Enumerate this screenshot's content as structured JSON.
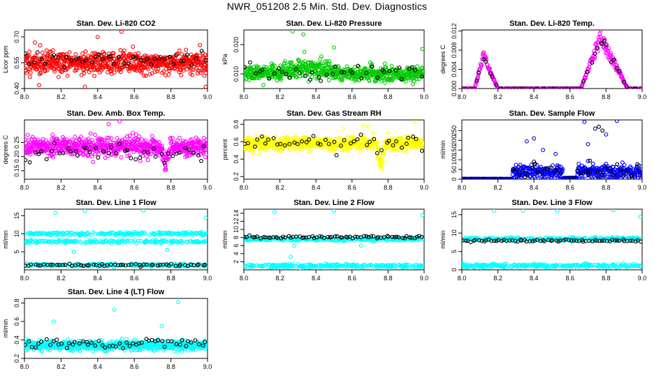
{
  "figure_title": "NWR_051208  2.5 Min. Std. Dev. Diagnostics",
  "colors": {
    "red": "#ff0000",
    "green": "#00cc00",
    "magenta": "#ff00ff",
    "yellow": "#ffff00",
    "blue": "#0000ff",
    "cyan": "#00ffff",
    "black": "#000000"
  },
  "chart_data": [
    {
      "id": "co2",
      "type": "scatter",
      "title": "Stan. Dev. Li-820 CO2",
      "ylabel": "Licor ppm",
      "xlim": [
        8.0,
        9.0
      ],
      "ylim": [
        0.4,
        0.74
      ],
      "xticks": [
        8.0,
        8.2,
        8.4,
        8.6,
        8.8,
        9.0
      ],
      "xtick_labels": [
        "8.0",
        "8.2",
        "8.4",
        "8.6",
        "8.8",
        "9.0"
      ],
      "yticks": [
        0.4,
        0.55,
        0.7
      ],
      "ytick_labels": [
        "0.40",
        "0.55",
        "0.70"
      ],
      "series": [
        {
          "name": "all",
          "color": "#ff0000",
          "pattern": "band",
          "n": 700,
          "center": 0.55,
          "spread": 0.06,
          "seed": 11,
          "outliers": [
            [
              8.08,
              0.42
            ],
            [
              8.33,
              0.41
            ],
            [
              8.53,
              0.73
            ],
            [
              8.99,
              0.41
            ],
            [
              8.4,
              0.7
            ]
          ]
        },
        {
          "name": "highlight",
          "color": "#000000",
          "pattern": "band",
          "n": 45,
          "center": 0.57,
          "spread": 0.045,
          "seed": 12
        }
      ]
    },
    {
      "id": "pressure",
      "type": "scatter",
      "title": "Stan. Dev. Li-820 Pressure",
      "ylabel": "kPa",
      "xlim": [
        8.0,
        9.0
      ],
      "ylim": [
        0.005,
        0.025
      ],
      "xticks": [
        8.0,
        8.2,
        8.4,
        8.6,
        8.8,
        9.0
      ],
      "xtick_labels": [
        "8.0",
        "8.2",
        "8.4",
        "8.6",
        "8.8",
        "9.0"
      ],
      "yticks": [
        0.01,
        0.02
      ],
      "ytick_labels": [
        "0.010",
        "0.020"
      ],
      "series": [
        {
          "name": "all",
          "color": "#00cc00",
          "pattern": "hump",
          "n": 700,
          "center": 0.01,
          "spread": 0.0025,
          "hump_at": 8.35,
          "hump_width": 0.15,
          "hump_height": 0.004,
          "seed": 21,
          "outliers": [
            [
              8.27,
              0.0245
            ],
            [
              8.33,
              0.0235
            ],
            [
              8.99,
              0.0185
            ],
            [
              8.5,
              0.019
            ]
          ]
        },
        {
          "name": "highlight",
          "color": "#000000",
          "pattern": "band",
          "n": 40,
          "center": 0.0105,
          "spread": 0.0028,
          "seed": 22
        }
      ]
    },
    {
      "id": "temp",
      "type": "scatter",
      "title": "Stan. Dev. Li-820 Temp.",
      "ylabel": "degrees C",
      "xlim": [
        8.0,
        9.0
      ],
      "ylim": [
        0.0,
        0.0122
      ],
      "xticks": [
        8.0,
        8.2,
        8.4,
        8.6,
        8.8,
        9.0
      ],
      "xtick_labels": [
        "8.0",
        "8.2",
        "8.4",
        "8.6",
        "8.8",
        "9.0"
      ],
      "yticks": [
        0.0,
        0.004,
        0.008,
        0.012
      ],
      "ytick_labels": [
        "0.000",
        "0.004",
        "0.008",
        "0.012"
      ],
      "series": [
        {
          "name": "all",
          "color": "#ff00ff",
          "pattern": "peaks",
          "n": 420,
          "seed": 31,
          "peaks": [
            {
              "start": 8.07,
              "top": 8.12,
              "end": 8.2,
              "height": 0.0075
            },
            {
              "start": 8.66,
              "top": 8.77,
              "end": 8.92,
              "height": 0.0118
            }
          ]
        },
        {
          "name": "highlight",
          "color": "#000000",
          "pattern": "peaks",
          "n": 55,
          "seed": 32,
          "peaks": [
            {
              "start": 8.07,
              "top": 8.12,
              "end": 8.2,
              "height": 0.007
            },
            {
              "start": 8.66,
              "top": 8.77,
              "end": 8.92,
              "height": 0.0115
            }
          ]
        }
      ]
    },
    {
      "id": "ambbox",
      "type": "scatter",
      "title": "Stan. Dev. Amb. Box Temp.",
      "ylabel": "degrees C",
      "xlim": [
        8.0,
        9.0
      ],
      "ylim": [
        0.12,
        0.33
      ],
      "xticks": [
        8.0,
        8.2,
        8.4,
        8.6,
        8.8,
        9.0
      ],
      "xtick_labels": [
        "8.0",
        "8.2",
        "8.4",
        "8.6",
        "8.8",
        "9.0"
      ],
      "yticks": [
        0.15,
        0.2,
        0.25
      ],
      "ytick_labels": [
        "0.15",
        "0.20",
        "0.25"
      ],
      "series": [
        {
          "name": "all",
          "color": "#ff00ff",
          "pattern": "dip",
          "n": 700,
          "center": 0.235,
          "spread": 0.03,
          "dip_at": 8.77,
          "dip_depth": 0.08,
          "seed": 41,
          "outliers": [
            [
              8.52,
              0.325
            ],
            [
              8.46,
              0.315
            ]
          ]
        },
        {
          "name": "highlight",
          "color": "#000000",
          "pattern": "dip",
          "n": 45,
          "center": 0.215,
          "spread": 0.025,
          "dip_at": 8.77,
          "dip_depth": 0.08,
          "seed": 42
        }
      ]
    },
    {
      "id": "rh",
      "type": "scatter",
      "title": "Stan. Dev. Gas Stream RH",
      "ylabel": "percent",
      "xlim": [
        8.0,
        9.0
      ],
      "ylim": [
        0.17,
        0.85
      ],
      "xticks": [
        8.0,
        8.2,
        8.4,
        8.6,
        8.8,
        9.0
      ],
      "xtick_labels": [
        "8.0",
        "8.2",
        "8.4",
        "8.6",
        "8.8",
        "9.0"
      ],
      "yticks": [
        0.2,
        0.4,
        0.6,
        0.8
      ],
      "ytick_labels": [
        "0.2",
        "0.4",
        "0.6",
        "0.8"
      ],
      "series": [
        {
          "name": "all",
          "color": "#ffff00",
          "pattern": "dip",
          "n": 700,
          "center": 0.58,
          "spread": 0.07,
          "dip_at": 8.76,
          "dip_depth": 0.3,
          "seed": 51,
          "outliers": [
            [
              8.95,
              0.84
            ],
            [
              8.66,
              0.79
            ],
            [
              8.55,
              0.75
            ]
          ]
        },
        {
          "name": "highlight",
          "color": "#000000",
          "pattern": "dip",
          "n": 45,
          "center": 0.58,
          "spread": 0.08,
          "dip_at": 8.76,
          "dip_depth": 0.34,
          "seed": 52
        }
      ]
    },
    {
      "id": "sampleflow",
      "type": "scatter",
      "title": "Stan. Dev. Sample Flow",
      "ylabel": "ml/min",
      "xlim": [
        8.0,
        9.0
      ],
      "ylim": [
        0,
        305
      ],
      "xticks": [
        8.0,
        8.2,
        8.4,
        8.6,
        8.8,
        9.0
      ],
      "xtick_labels": [
        "8.0",
        "8.2",
        "8.4",
        "8.6",
        "8.8",
        "9.0"
      ],
      "yticks": [
        0,
        50,
        100,
        150,
        200,
        250
      ],
      "ytick_labels": [
        "0",
        "50",
        "100",
        "150",
        "200",
        "250"
      ],
      "series": [
        {
          "name": "all",
          "color": "#0000ff",
          "pattern": "flow",
          "n": 600,
          "seed": 61,
          "zero_until": 8.28,
          "gap": [
            8.56,
            8.64
          ],
          "outliers": [
            [
              8.4,
              210
            ],
            [
              8.36,
              195
            ],
            [
              8.68,
              295
            ],
            [
              8.74,
              260
            ],
            [
              8.86,
              300
            ],
            [
              8.45,
              150
            ],
            [
              8.52,
              130
            ],
            [
              8.8,
              230
            ],
            [
              8.7,
              180
            ]
          ]
        },
        {
          "name": "highlight",
          "color": "#000000",
          "pattern": "flow",
          "n": 55,
          "seed": 62,
          "zero_until": 8.28,
          "gap": [
            8.56,
            8.64
          ],
          "outliers": [
            [
              8.76,
              270
            ],
            [
              8.78,
              250
            ],
            [
              8.4,
              90
            ],
            [
              8.71,
              95
            ]
          ]
        }
      ]
    },
    {
      "id": "line1",
      "type": "scatter",
      "title": "Stan. Dev. Line 1 Flow",
      "ylabel": "ml/min",
      "xlim": [
        8.0,
        9.0
      ],
      "ylim": [
        0,
        16.8
      ],
      "xticks": [
        8.0,
        8.2,
        8.4,
        8.6,
        8.8,
        9.0
      ],
      "xtick_labels": [
        "8.0",
        "8.2",
        "8.4",
        "8.6",
        "8.8",
        "9.0"
      ],
      "yticks": [
        5,
        10,
        15
      ],
      "ytick_labels": [
        "5",
        "10",
        "15"
      ],
      "series": [
        {
          "name": "all",
          "color": "#00ffff",
          "pattern": "bands",
          "n": 600,
          "levels": [
            10.0,
            7.8,
            1.3
          ],
          "spread": 0.35,
          "seed": 71,
          "outliers": [
            [
              8.17,
              15.8
            ],
            [
              8.33,
              16.3
            ],
            [
              8.65,
              16.4
            ],
            [
              8.99,
              14.4
            ],
            [
              8.27,
              5.0
            ],
            [
              8.78,
              5.5
            ]
          ]
        },
        {
          "name": "highlight",
          "color": "#000000",
          "pattern": "bands",
          "n": 60,
          "levels": [
            1.3
          ],
          "spread": 0.25,
          "seed": 72
        }
      ]
    },
    {
      "id": "line2",
      "type": "scatter",
      "title": "Stan. Dev. Line 2 Flow",
      "ylabel": "ml/min",
      "xlim": [
        8.0,
        9.0
      ],
      "ylim": [
        0,
        15
      ],
      "xticks": [
        8.0,
        8.2,
        8.4,
        8.6,
        8.8,
        9.0
      ],
      "xtick_labels": [
        "8.0",
        "8.2",
        "8.4",
        "8.6",
        "8.8",
        "9.0"
      ],
      "yticks": [
        2,
        4,
        6,
        8,
        10,
        12,
        14
      ],
      "ytick_labels": [
        "2",
        "4",
        "6",
        "8",
        "10",
        "12",
        "14"
      ],
      "series": [
        {
          "name": "all",
          "color": "#00ffff",
          "pattern": "bands",
          "n": 500,
          "levels": [
            7.6,
            1.0
          ],
          "spread": 0.35,
          "seed": 81,
          "outliers": [
            [
              8.17,
              14.3
            ],
            [
              8.5,
              14.6
            ],
            [
              8.99,
              13.5
            ],
            [
              8.28,
              6.0
            ],
            [
              8.26,
              3.2
            ],
            [
              8.65,
              6.0
            ]
          ]
        },
        {
          "name": "highlight",
          "color": "#000000",
          "pattern": "bands",
          "n": 70,
          "levels": [
            8.1
          ],
          "spread": 0.25,
          "seed": 82
        }
      ]
    },
    {
      "id": "line3",
      "type": "scatter",
      "title": "Stan. Dev. Line 3 Flow",
      "ylabel": "ml/min",
      "xlim": [
        8.0,
        9.0
      ],
      "ylim": [
        0,
        16.5
      ],
      "xticks": [
        8.0,
        8.2,
        8.4,
        8.6,
        8.8,
        9.0
      ],
      "xtick_labels": [
        "8.0",
        "8.2",
        "8.4",
        "8.6",
        "8.8",
        "9.0"
      ],
      "yticks": [
        0,
        5,
        10,
        15
      ],
      "ytick_labels": [
        "0",
        "5",
        "10",
        "15"
      ],
      "series": [
        {
          "name": "all",
          "color": "#00ffff",
          "pattern": "bands",
          "n": 500,
          "levels": [
            8.4,
            1.1
          ],
          "spread": 0.4,
          "seed": 91,
          "outliers": [
            [
              8.18,
              16.0
            ],
            [
              8.34,
              16.1
            ],
            [
              8.53,
              16.0
            ],
            [
              8.84,
              16.2
            ],
            [
              8.99,
              14.4
            ]
          ]
        },
        {
          "name": "highlight",
          "color": "#000000",
          "pattern": "bands",
          "n": 70,
          "levels": [
            7.9
          ],
          "spread": 0.25,
          "seed": 92
        }
      ]
    },
    {
      "id": "line4",
      "type": "scatter",
      "title": "Stan. Dev. Line 4 (LT) Flow",
      "ylabel": "ml/min",
      "xlim": [
        8.0,
        9.0
      ],
      "ylim": [
        0.2,
        0.85
      ],
      "xticks": [
        8.0,
        8.2,
        8.4,
        8.6,
        8.8,
        9.0
      ],
      "xtick_labels": [
        "8.0",
        "8.2",
        "8.4",
        "8.6",
        "8.8",
        "9.0"
      ],
      "yticks": [
        0.2,
        0.4,
        0.6,
        0.8
      ],
      "ytick_labels": [
        "0.2",
        "0.4",
        "0.6",
        "0.8"
      ],
      "series": [
        {
          "name": "all",
          "color": "#00ffff",
          "pattern": "band",
          "n": 700,
          "center": 0.34,
          "spread": 0.045,
          "seed": 101,
          "outliers": [
            [
              8.16,
              0.6
            ],
            [
              8.49,
              0.73
            ],
            [
              8.84,
              0.81
            ],
            [
              8.75,
              0.55
            ]
          ]
        },
        {
          "name": "highlight",
          "color": "#000000",
          "pattern": "band",
          "n": 55,
          "center": 0.36,
          "spread": 0.04,
          "seed": 102
        }
      ]
    }
  ]
}
